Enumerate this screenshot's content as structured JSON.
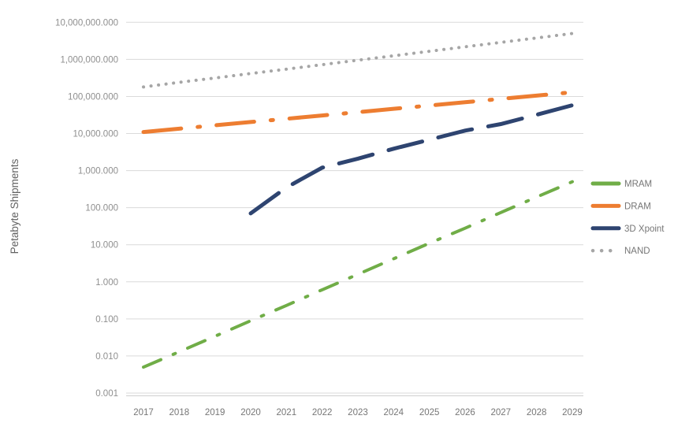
{
  "chart_data": {
    "type": "line",
    "title": "",
    "xlabel": "",
    "ylabel": "Petabyte Shipments",
    "y_scale": "log",
    "ylim": [
      0.001,
      10000000
    ],
    "grid": "horizontal-decades",
    "legend_position": "right",
    "y_tick_labels_top_to_bottom": [
      "10,000,000.000",
      "1,000,000.000",
      "100,000.000",
      "10,000.000",
      "1,000.000",
      "100.000",
      "10.000",
      "1.000",
      "0.100",
      "0.010",
      "0.001"
    ],
    "x": [
      "2017",
      "2018",
      "2019",
      "2020",
      "2021",
      "2022",
      "2023",
      "2024",
      "2025",
      "2026",
      "2027",
      "2028",
      "2029"
    ],
    "series": [
      {
        "name": "MRAM",
        "color": "#70AD47",
        "line_style": "dash-dot",
        "values": [
          0.005,
          0.013,
          0.034,
          0.089,
          0.23,
          0.61,
          1.6,
          4.2,
          11,
          28,
          74,
          193,
          500
        ]
      },
      {
        "name": "DRAM",
        "color": "#ED7D31",
        "line_style": "long-dash-dot",
        "values": [
          11000,
          13500,
          16600,
          20400,
          25000,
          30700,
          37700,
          46400,
          56900,
          69900,
          85900,
          105000,
          130000
        ]
      },
      {
        "name": "3D Xpoint",
        "color": "#2E4470",
        "line_style": "long-dash",
        "values": [
          null,
          null,
          null,
          70,
          350,
          1200,
          2100,
          3900,
          6800,
          12000,
          18000,
          32000,
          58000
        ]
      },
      {
        "name": "NAND",
        "color": "#A6A6A6",
        "line_style": "dot",
        "values": [
          180000,
          240000,
          315000,
          415000,
          545000,
          720000,
          950000,
          1250000,
          1650000,
          2180000,
          2870000,
          3780000,
          5000000
        ]
      }
    ]
  }
}
